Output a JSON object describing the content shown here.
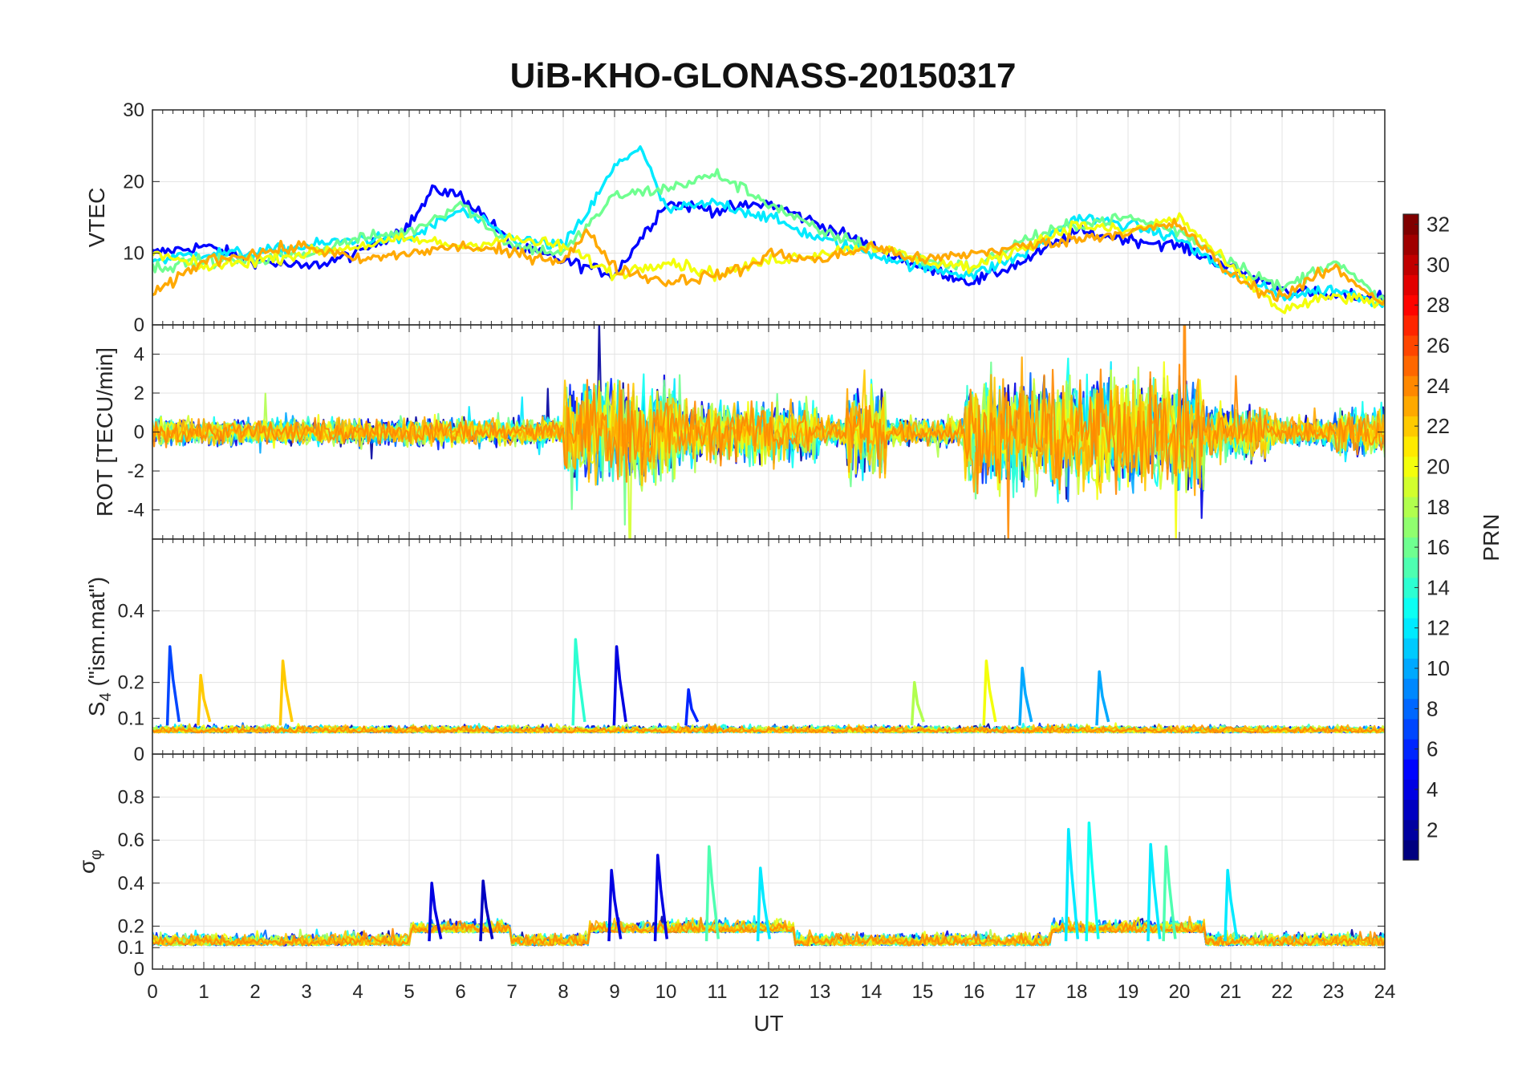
{
  "title": "UiB-KHO-GLONASS-20150317",
  "chart_data": {
    "type": "line",
    "title": "UiB-KHO-GLONASS-20150317",
    "xlabel": "UT",
    "xlim": [
      0,
      24
    ],
    "xticks": [
      "0",
      "1",
      "2",
      "3",
      "4",
      "5",
      "6",
      "7",
      "8",
      "9",
      "10",
      "11",
      "12",
      "13",
      "14",
      "15",
      "16",
      "17",
      "18",
      "19",
      "20",
      "21",
      "22",
      "23",
      "24"
    ],
    "grid": true,
    "colormap": "jet",
    "colorbar": {
      "label": "PRN",
      "range": [
        1,
        32
      ],
      "ticks": [
        "2",
        "4",
        "6",
        "8",
        "10",
        "12",
        "14",
        "16",
        "18",
        "20",
        "22",
        "24",
        "26",
        "28",
        "30",
        "32"
      ],
      "tick_values": [
        2,
        4,
        6,
        8,
        10,
        12,
        14,
        16,
        18,
        20,
        22,
        24,
        26,
        28,
        30,
        32
      ]
    },
    "panels": [
      {
        "ylabel": "VTEC",
        "ylim": [
          0,
          30
        ],
        "yticks": [
          "0",
          "10",
          "20",
          "30"
        ],
        "ytick_values": [
          0,
          10,
          20,
          30
        ],
        "typical_range": [
          2,
          27
        ],
        "series": [
          {
            "prn": 5,
            "x": [
              0,
              1,
              2,
              3,
              4,
              5,
              5.5,
              6,
              6.5,
              7,
              8,
              9,
              10,
              11,
              12,
              13,
              14,
              15,
              16,
              17,
              18,
              19,
              20,
              21,
              22,
              23,
              24
            ],
            "y": [
              10,
              11,
              9,
              8,
              10,
              14,
              19,
              18,
              15,
              11,
              9,
              7,
              17,
              16,
              17,
              14,
              11,
              8,
              6,
              9,
              13,
              12,
              11,
              8,
              5,
              4,
              4
            ]
          },
          {
            "prn": 12,
            "x": [
              0,
              1,
              2,
              3,
              4,
              5,
              6,
              7,
              8,
              8.5,
              9,
              9.5,
              10,
              11,
              12,
              13,
              14,
              15,
              16,
              17,
              18,
              19,
              20,
              21,
              22,
              23,
              24
            ],
            "y": [
              9,
              10,
              10,
              11,
              12,
              12,
              16,
              12,
              11,
              16,
              22,
              25,
              16,
              17,
              15,
              12,
              10,
              8,
              7,
              10,
              15,
              14,
              12,
              7,
              4,
              5,
              3
            ]
          },
          {
            "prn": 16,
            "x": [
              0,
              1,
              2,
              3,
              4,
              5,
              6,
              7,
              8,
              9,
              10,
              11,
              12,
              13,
              14,
              15,
              16,
              17,
              18,
              19,
              20,
              21,
              22,
              23,
              24
            ],
            "y": [
              8,
              9,
              9,
              10,
              12,
              13,
              17,
              11,
              10,
              18,
              19,
              21,
              17,
              13,
              11,
              9,
              8,
              12,
              14,
              15,
              13,
              9,
              5,
              9,
              3
            ]
          },
          {
            "prn": 20,
            "x": [
              0,
              1,
              2,
              3,
              4,
              5,
              6,
              7,
              8,
              9,
              10,
              11,
              12,
              13,
              14,
              15,
              16,
              17,
              18,
              19,
              20,
              21,
              22,
              23,
              24
            ],
            "y": [
              10,
              8,
              9,
              10,
              11,
              12,
              11,
              12,
              11,
              7,
              9,
              7,
              9,
              10,
              11,
              9,
              8,
              11,
              14,
              13,
              15,
              8,
              2,
              4,
              3
            ]
          },
          {
            "prn": 23,
            "x": [
              0,
              1,
              2,
              3,
              4,
              6,
              7,
              8,
              8.5,
              9,
              10,
              11,
              11.6,
              12,
              13,
              14,
              15,
              16,
              17,
              18,
              19,
              20,
              21,
              21.5,
              22,
              23,
              24
            ],
            "y": [
              4,
              9,
              10,
              11,
              9,
              11,
              10,
              9,
              13,
              8,
              6,
              7,
              8,
              10,
              9,
              11,
              9,
              10,
              11,
              12,
              13,
              14,
              7,
              5,
              4,
              8,
              3
            ]
          }
        ]
      },
      {
        "ylabel": "ROT [TECU/min]",
        "ylim": [
          -5.5,
          5.5
        ],
        "yticks": [
          "-4",
          "-2",
          "0",
          "2",
          "4"
        ],
        "ytick_values": [
          -4,
          -2,
          0,
          2,
          4
        ],
        "typical_range": [
          -5.5,
          5.5
        ],
        "series_note": "noisy scatter around 0 with spikes up to about ±5 between 8–10 UT, around 14 UT and 16–20 UT"
      },
      {
        "ylabel": "S4 (\"ism.mat\")",
        "ylabel_main": "S",
        "ylabel_sub": "4",
        "ylabel_rest": " (\"ism.mat\")",
        "ylim": [
          0,
          0.6
        ],
        "yticks": [
          "0",
          "0.1",
          "0.2",
          "0.4"
        ],
        "ytick_values": [
          0,
          0.1,
          0.2,
          0.4
        ],
        "typical_range": [
          0.03,
          0.32
        ],
        "spikes": [
          {
            "x": 0.4,
            "y": 0.3,
            "prn": 7
          },
          {
            "x": 1.0,
            "y": 0.22,
            "prn": 22
          },
          {
            "x": 2.6,
            "y": 0.26,
            "prn": 22
          },
          {
            "x": 8.3,
            "y": 0.32,
            "prn": 14
          },
          {
            "x": 9.1,
            "y": 0.3,
            "prn": 4
          },
          {
            "x": 10.5,
            "y": 0.18,
            "prn": 6
          },
          {
            "x": 14.9,
            "y": 0.2,
            "prn": 18
          },
          {
            "x": 16.3,
            "y": 0.26,
            "prn": 20
          },
          {
            "x": 17.0,
            "y": 0.24,
            "prn": 10
          },
          {
            "x": 18.5,
            "y": 0.23,
            "prn": 10
          }
        ]
      },
      {
        "ylabel": "σφ",
        "ylabel_main": "σ",
        "ylabel_sub": "φ",
        "ylim": [
          0,
          1
        ],
        "yticks": [
          "0",
          "0.1",
          "0.2",
          "0.4",
          "0.6",
          "0.8"
        ],
        "ytick_values": [
          0,
          0.1,
          0.2,
          0.4,
          0.6,
          0.8
        ],
        "typical_range": [
          0.05,
          0.68
        ],
        "spikes": [
          {
            "x": 5.5,
            "y": 0.4,
            "prn": 4
          },
          {
            "x": 6.5,
            "y": 0.41,
            "prn": 3
          },
          {
            "x": 9.0,
            "y": 0.46,
            "prn": 4
          },
          {
            "x": 9.9,
            "y": 0.53,
            "prn": 4
          },
          {
            "x": 10.9,
            "y": 0.57,
            "prn": 15
          },
          {
            "x": 11.9,
            "y": 0.47,
            "prn": 12
          },
          {
            "x": 17.9,
            "y": 0.65,
            "prn": 12
          },
          {
            "x": 18.3,
            "y": 0.68,
            "prn": 13
          },
          {
            "x": 19.5,
            "y": 0.58,
            "prn": 12
          },
          {
            "x": 19.8,
            "y": 0.57,
            "prn": 15
          },
          {
            "x": 21.0,
            "y": 0.46,
            "prn": 12
          }
        ]
      }
    ]
  }
}
